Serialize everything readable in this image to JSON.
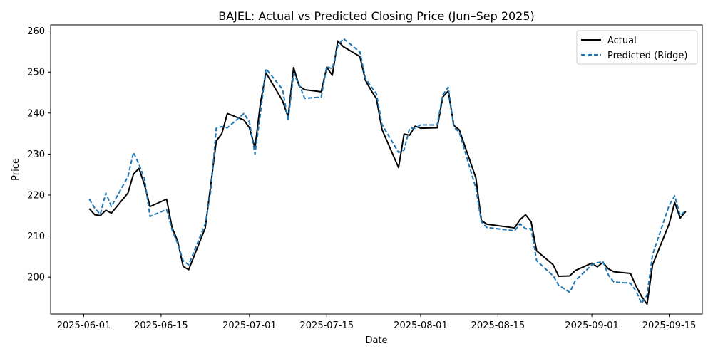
{
  "chart_data": {
    "type": "line",
    "title": "BAJEL: Actual vs Predicted Closing Price (Jun–Sep 2025)",
    "xlabel": "Date",
    "ylabel": "Price",
    "xlim": [
      "2025-05-26",
      "2025-09-21"
    ],
    "ylim": [
      191.0,
      261.5
    ],
    "x_ticks": [
      "2025-06-01",
      "2025-06-15",
      "2025-07-01",
      "2025-07-15",
      "2025-08-01",
      "2025-08-15",
      "2025-09-01",
      "2025-09-15"
    ],
    "y_ticks": [
      200,
      210,
      220,
      230,
      240,
      250,
      260
    ],
    "grid": false,
    "legend_position": "top-right",
    "series": [
      {
        "name": "Actual",
        "color": "#000000",
        "style": "solid",
        "points": [
          [
            "2025-06-02",
            216.7
          ],
          [
            "2025-06-03",
            215.2
          ],
          [
            "2025-06-04",
            215.0
          ],
          [
            "2025-06-05",
            216.3
          ],
          [
            "2025-06-06",
            215.6
          ],
          [
            "2025-06-09",
            220.5
          ],
          [
            "2025-06-10",
            225.1
          ],
          [
            "2025-06-11",
            226.5
          ],
          [
            "2025-06-12",
            222.5
          ],
          [
            "2025-06-13",
            217.2
          ],
          [
            "2025-06-16",
            219.0
          ],
          [
            "2025-06-17",
            212.0
          ],
          [
            "2025-06-18",
            208.8
          ],
          [
            "2025-06-19",
            202.6
          ],
          [
            "2025-06-20",
            201.8
          ],
          [
            "2025-06-23",
            212.0
          ],
          [
            "2025-06-24",
            222.5
          ],
          [
            "2025-06-25",
            233.2
          ],
          [
            "2025-06-26",
            235.0
          ],
          [
            "2025-06-27",
            239.9
          ],
          [
            "2025-06-30",
            238.3
          ],
          [
            "2025-07-01",
            236.4
          ],
          [
            "2025-07-02",
            231.5
          ],
          [
            "2025-07-03",
            242.5
          ],
          [
            "2025-07-04",
            249.8
          ],
          [
            "2025-07-07",
            243.0
          ],
          [
            "2025-07-08",
            239.0
          ],
          [
            "2025-07-09",
            251.1
          ],
          [
            "2025-07-10",
            246.6
          ],
          [
            "2025-07-11",
            245.7
          ],
          [
            "2025-07-14",
            245.2
          ],
          [
            "2025-07-15",
            251.2
          ],
          [
            "2025-07-16",
            249.2
          ],
          [
            "2025-07-17",
            257.6
          ],
          [
            "2025-07-18",
            256.2
          ],
          [
            "2025-07-21",
            253.8
          ],
          [
            "2025-07-22",
            248.0
          ],
          [
            "2025-07-23",
            245.6
          ],
          [
            "2025-07-24",
            243.5
          ],
          [
            "2025-07-25",
            236.0
          ],
          [
            "2025-07-28",
            226.7
          ],
          [
            "2025-07-29",
            234.9
          ],
          [
            "2025-07-30",
            234.6
          ],
          [
            "2025-07-31",
            236.8
          ],
          [
            "2025-08-01",
            236.3
          ],
          [
            "2025-08-04",
            236.4
          ],
          [
            "2025-08-05",
            243.9
          ],
          [
            "2025-08-06",
            245.4
          ],
          [
            "2025-08-07",
            237.0
          ],
          [
            "2025-08-08",
            235.9
          ],
          [
            "2025-08-11",
            224.2
          ],
          [
            "2025-08-12",
            213.8
          ],
          [
            "2025-08-13",
            212.9
          ],
          [
            "2025-08-18",
            212.0
          ],
          [
            "2025-08-19",
            214.0
          ],
          [
            "2025-08-20",
            215.2
          ],
          [
            "2025-08-21",
            213.5
          ],
          [
            "2025-08-22",
            206.4
          ],
          [
            "2025-08-25",
            203.0
          ],
          [
            "2025-08-26",
            200.2
          ],
          [
            "2025-08-28",
            200.3
          ],
          [
            "2025-08-29",
            201.6
          ],
          [
            "2025-09-01",
            203.4
          ],
          [
            "2025-09-02",
            202.5
          ],
          [
            "2025-09-03",
            203.6
          ],
          [
            "2025-09-04",
            202.0
          ],
          [
            "2025-09-05",
            201.3
          ],
          [
            "2025-09-08",
            200.9
          ],
          [
            "2025-09-09",
            197.8
          ],
          [
            "2025-09-10",
            195.3
          ],
          [
            "2025-09-11",
            193.4
          ],
          [
            "2025-09-12",
            203.0
          ],
          [
            "2025-09-15",
            213.0
          ],
          [
            "2025-09-16",
            218.2
          ],
          [
            "2025-09-17",
            214.4
          ],
          [
            "2025-09-18",
            216.0
          ]
        ]
      },
      {
        "name": "Predicted (Ridge)",
        "color": "#1f77b4",
        "style": "dashed",
        "points": [
          [
            "2025-06-02",
            219.0
          ],
          [
            "2025-06-03",
            216.8
          ],
          [
            "2025-06-04",
            215.3
          ],
          [
            "2025-06-05",
            220.5
          ],
          [
            "2025-06-06",
            217.2
          ],
          [
            "2025-06-09",
            224.5
          ],
          [
            "2025-06-10",
            230.4
          ],
          [
            "2025-06-11",
            227.5
          ],
          [
            "2025-06-12",
            224.0
          ],
          [
            "2025-06-13",
            214.8
          ],
          [
            "2025-06-16",
            216.5
          ],
          [
            "2025-06-17",
            211.5
          ],
          [
            "2025-06-18",
            208.2
          ],
          [
            "2025-06-19",
            204.0
          ],
          [
            "2025-06-20",
            203.0
          ],
          [
            "2025-06-23",
            213.0
          ],
          [
            "2025-06-24",
            221.0
          ],
          [
            "2025-06-25",
            236.3
          ],
          [
            "2025-06-26",
            236.7
          ],
          [
            "2025-06-27",
            236.4
          ],
          [
            "2025-06-30",
            239.9
          ],
          [
            "2025-07-01",
            237.8
          ],
          [
            "2025-07-02",
            230.0
          ],
          [
            "2025-07-03",
            240.0
          ],
          [
            "2025-07-04",
            250.8
          ],
          [
            "2025-07-07",
            245.8
          ],
          [
            "2025-07-08",
            238.1
          ],
          [
            "2025-07-09",
            249.6
          ],
          [
            "2025-07-10",
            247.0
          ],
          [
            "2025-07-11",
            243.6
          ],
          [
            "2025-07-14",
            243.9
          ],
          [
            "2025-07-15",
            251.3
          ],
          [
            "2025-07-16",
            250.8
          ],
          [
            "2025-07-17",
            256.3
          ],
          [
            "2025-07-18",
            258.2
          ],
          [
            "2025-07-21",
            254.9
          ],
          [
            "2025-07-22",
            248.5
          ],
          [
            "2025-07-23",
            246.5
          ],
          [
            "2025-07-24",
            244.7
          ],
          [
            "2025-07-25",
            237.2
          ],
          [
            "2025-07-28",
            230.4
          ],
          [
            "2025-07-29",
            231.0
          ],
          [
            "2025-07-30",
            236.3
          ],
          [
            "2025-07-31",
            236.3
          ],
          [
            "2025-08-01",
            237.1
          ],
          [
            "2025-08-04",
            237.1
          ],
          [
            "2025-08-05",
            244.4
          ],
          [
            "2025-08-06",
            246.3
          ],
          [
            "2025-08-07",
            236.6
          ],
          [
            "2025-08-08",
            235.3
          ],
          [
            "2025-08-11",
            221.7
          ],
          [
            "2025-08-12",
            213.5
          ],
          [
            "2025-08-13",
            212.1
          ],
          [
            "2025-08-18",
            211.3
          ],
          [
            "2025-08-19",
            213.0
          ],
          [
            "2025-08-20",
            211.8
          ],
          [
            "2025-08-21",
            211.8
          ],
          [
            "2025-08-22",
            204.0
          ],
          [
            "2025-08-25",
            200.3
          ],
          [
            "2025-08-26",
            198.0
          ],
          [
            "2025-08-28",
            196.3
          ],
          [
            "2025-08-29",
            199.1
          ],
          [
            "2025-09-01",
            203.0
          ],
          [
            "2025-09-02",
            203.5
          ],
          [
            "2025-09-03",
            203.8
          ],
          [
            "2025-09-04",
            200.5
          ],
          [
            "2025-09-05",
            198.8
          ],
          [
            "2025-09-08",
            198.5
          ],
          [
            "2025-09-09",
            196.6
          ],
          [
            "2025-09-10",
            193.6
          ],
          [
            "2025-09-11",
            195.6
          ],
          [
            "2025-09-12",
            205.5
          ],
          [
            "2025-09-15",
            217.5
          ],
          [
            "2025-09-16",
            219.8
          ],
          [
            "2025-09-17",
            215.0
          ],
          [
            "2025-09-18",
            216.2
          ]
        ]
      }
    ]
  }
}
